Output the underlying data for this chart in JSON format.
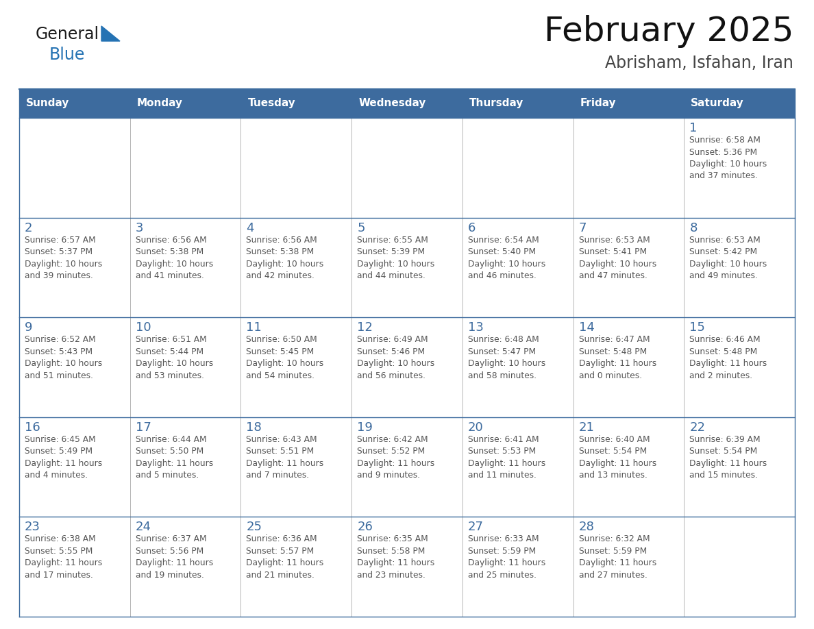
{
  "title": "February 2025",
  "subtitle": "Abrisham, Isfahan, Iran",
  "header_color": "#3D6B9E",
  "header_text_color": "#FFFFFF",
  "cell_bg_color": "#FFFFFF",
  "cell_border_color": "#3D6B9E",
  "day_number_color": "#3D6B9E",
  "cell_text_color": "#555555",
  "logo_general_color": "#1a1a1a",
  "logo_blue_color": "#2472B3",
  "days_of_week": [
    "Sunday",
    "Monday",
    "Tuesday",
    "Wednesday",
    "Thursday",
    "Friday",
    "Saturday"
  ],
  "weeks": [
    [
      {
        "day": null,
        "data": null
      },
      {
        "day": null,
        "data": null
      },
      {
        "day": null,
        "data": null
      },
      {
        "day": null,
        "data": null
      },
      {
        "day": null,
        "data": null
      },
      {
        "day": null,
        "data": null
      },
      {
        "day": 1,
        "data": "Sunrise: 6:58 AM\nSunset: 5:36 PM\nDaylight: 10 hours\nand 37 minutes."
      }
    ],
    [
      {
        "day": 2,
        "data": "Sunrise: 6:57 AM\nSunset: 5:37 PM\nDaylight: 10 hours\nand 39 minutes."
      },
      {
        "day": 3,
        "data": "Sunrise: 6:56 AM\nSunset: 5:38 PM\nDaylight: 10 hours\nand 41 minutes."
      },
      {
        "day": 4,
        "data": "Sunrise: 6:56 AM\nSunset: 5:38 PM\nDaylight: 10 hours\nand 42 minutes."
      },
      {
        "day": 5,
        "data": "Sunrise: 6:55 AM\nSunset: 5:39 PM\nDaylight: 10 hours\nand 44 minutes."
      },
      {
        "day": 6,
        "data": "Sunrise: 6:54 AM\nSunset: 5:40 PM\nDaylight: 10 hours\nand 46 minutes."
      },
      {
        "day": 7,
        "data": "Sunrise: 6:53 AM\nSunset: 5:41 PM\nDaylight: 10 hours\nand 47 minutes."
      },
      {
        "day": 8,
        "data": "Sunrise: 6:53 AM\nSunset: 5:42 PM\nDaylight: 10 hours\nand 49 minutes."
      }
    ],
    [
      {
        "day": 9,
        "data": "Sunrise: 6:52 AM\nSunset: 5:43 PM\nDaylight: 10 hours\nand 51 minutes."
      },
      {
        "day": 10,
        "data": "Sunrise: 6:51 AM\nSunset: 5:44 PM\nDaylight: 10 hours\nand 53 minutes."
      },
      {
        "day": 11,
        "data": "Sunrise: 6:50 AM\nSunset: 5:45 PM\nDaylight: 10 hours\nand 54 minutes."
      },
      {
        "day": 12,
        "data": "Sunrise: 6:49 AM\nSunset: 5:46 PM\nDaylight: 10 hours\nand 56 minutes."
      },
      {
        "day": 13,
        "data": "Sunrise: 6:48 AM\nSunset: 5:47 PM\nDaylight: 10 hours\nand 58 minutes."
      },
      {
        "day": 14,
        "data": "Sunrise: 6:47 AM\nSunset: 5:48 PM\nDaylight: 11 hours\nand 0 minutes."
      },
      {
        "day": 15,
        "data": "Sunrise: 6:46 AM\nSunset: 5:48 PM\nDaylight: 11 hours\nand 2 minutes."
      }
    ],
    [
      {
        "day": 16,
        "data": "Sunrise: 6:45 AM\nSunset: 5:49 PM\nDaylight: 11 hours\nand 4 minutes."
      },
      {
        "day": 17,
        "data": "Sunrise: 6:44 AM\nSunset: 5:50 PM\nDaylight: 11 hours\nand 5 minutes."
      },
      {
        "day": 18,
        "data": "Sunrise: 6:43 AM\nSunset: 5:51 PM\nDaylight: 11 hours\nand 7 minutes."
      },
      {
        "day": 19,
        "data": "Sunrise: 6:42 AM\nSunset: 5:52 PM\nDaylight: 11 hours\nand 9 minutes."
      },
      {
        "day": 20,
        "data": "Sunrise: 6:41 AM\nSunset: 5:53 PM\nDaylight: 11 hours\nand 11 minutes."
      },
      {
        "day": 21,
        "data": "Sunrise: 6:40 AM\nSunset: 5:54 PM\nDaylight: 11 hours\nand 13 minutes."
      },
      {
        "day": 22,
        "data": "Sunrise: 6:39 AM\nSunset: 5:54 PM\nDaylight: 11 hours\nand 15 minutes."
      }
    ],
    [
      {
        "day": 23,
        "data": "Sunrise: 6:38 AM\nSunset: 5:55 PM\nDaylight: 11 hours\nand 17 minutes."
      },
      {
        "day": 24,
        "data": "Sunrise: 6:37 AM\nSunset: 5:56 PM\nDaylight: 11 hours\nand 19 minutes."
      },
      {
        "day": 25,
        "data": "Sunrise: 6:36 AM\nSunset: 5:57 PM\nDaylight: 11 hours\nand 21 minutes."
      },
      {
        "day": 26,
        "data": "Sunrise: 6:35 AM\nSunset: 5:58 PM\nDaylight: 11 hours\nand 23 minutes."
      },
      {
        "day": 27,
        "data": "Sunrise: 6:33 AM\nSunset: 5:59 PM\nDaylight: 11 hours\nand 25 minutes."
      },
      {
        "day": 28,
        "data": "Sunrise: 6:32 AM\nSunset: 5:59 PM\nDaylight: 11 hours\nand 27 minutes."
      },
      {
        "day": null,
        "data": null
      }
    ]
  ],
  "figsize": [
    11.88,
    9.18
  ],
  "dpi": 100
}
